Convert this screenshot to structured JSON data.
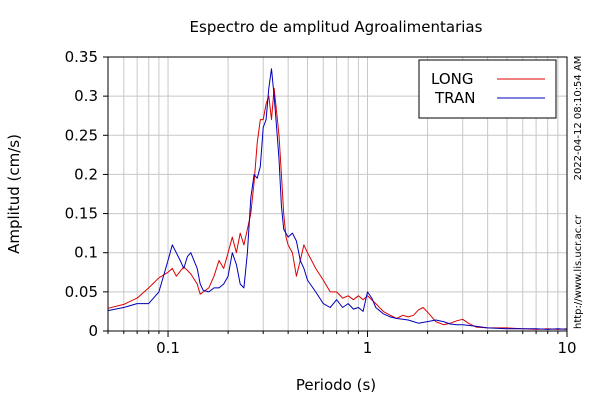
{
  "chart_data": {
    "type": "line",
    "title": "Espectro de amplitud Agroalimentarias",
    "xlabel": "Periodo (s)",
    "ylabel": "Amplitud (cm/s)",
    "xscale": "log",
    "xlim": [
      0.05,
      10
    ],
    "ylim": [
      0,
      0.35
    ],
    "xticks": [
      {
        "v": 0.1,
        "label": "0.1"
      },
      {
        "v": 1,
        "label": "1"
      },
      {
        "v": 10,
        "label": "10"
      }
    ],
    "yticks": [
      {
        "v": 0,
        "label": "0"
      },
      {
        "v": 0.05,
        "label": "0.05"
      },
      {
        "v": 0.1,
        "label": "0.1"
      },
      {
        "v": 0.15,
        "label": "0.15"
      },
      {
        "v": 0.2,
        "label": "0.2"
      },
      {
        "v": 0.25,
        "label": "0.25"
      },
      {
        "v": 0.3,
        "label": "0.3"
      },
      {
        "v": 0.35,
        "label": "0.35"
      }
    ],
    "grid": true,
    "legend_position": "top-right",
    "series": [
      {
        "name": "LONG",
        "color": "#dd0000",
        "points": [
          [
            0.05,
            0.029
          ],
          [
            0.06,
            0.034
          ],
          [
            0.07,
            0.042
          ],
          [
            0.08,
            0.055
          ],
          [
            0.09,
            0.068
          ],
          [
            0.1,
            0.075
          ],
          [
            0.105,
            0.08
          ],
          [
            0.11,
            0.07
          ],
          [
            0.12,
            0.082
          ],
          [
            0.13,
            0.073
          ],
          [
            0.14,
            0.06
          ],
          [
            0.145,
            0.047
          ],
          [
            0.15,
            0.05
          ],
          [
            0.16,
            0.055
          ],
          [
            0.17,
            0.07
          ],
          [
            0.18,
            0.09
          ],
          [
            0.19,
            0.08
          ],
          [
            0.2,
            0.1
          ],
          [
            0.21,
            0.12
          ],
          [
            0.22,
            0.1
          ],
          [
            0.23,
            0.125
          ],
          [
            0.24,
            0.11
          ],
          [
            0.25,
            0.13
          ],
          [
            0.26,
            0.15
          ],
          [
            0.27,
            0.19
          ],
          [
            0.28,
            0.24
          ],
          [
            0.29,
            0.27
          ],
          [
            0.3,
            0.27
          ],
          [
            0.31,
            0.29
          ],
          [
            0.32,
            0.3
          ],
          [
            0.33,
            0.27
          ],
          [
            0.34,
            0.31
          ],
          [
            0.35,
            0.28
          ],
          [
            0.36,
            0.25
          ],
          [
            0.37,
            0.2
          ],
          [
            0.38,
            0.15
          ],
          [
            0.39,
            0.12
          ],
          [
            0.4,
            0.11
          ],
          [
            0.42,
            0.1
          ],
          [
            0.44,
            0.07
          ],
          [
            0.46,
            0.09
          ],
          [
            0.48,
            0.11
          ],
          [
            0.5,
            0.1
          ],
          [
            0.55,
            0.08
          ],
          [
            0.6,
            0.065
          ],
          [
            0.65,
            0.05
          ],
          [
            0.7,
            0.05
          ],
          [
            0.75,
            0.042
          ],
          [
            0.8,
            0.045
          ],
          [
            0.85,
            0.04
          ],
          [
            0.9,
            0.045
          ],
          [
            0.95,
            0.04
          ],
          [
            1.0,
            0.045
          ],
          [
            1.1,
            0.035
          ],
          [
            1.2,
            0.025
          ],
          [
            1.3,
            0.02
          ],
          [
            1.4,
            0.016
          ],
          [
            1.5,
            0.02
          ],
          [
            1.6,
            0.018
          ],
          [
            1.7,
            0.02
          ],
          [
            1.8,
            0.027
          ],
          [
            1.9,
            0.03
          ],
          [
            2.0,
            0.024
          ],
          [
            2.2,
            0.012
          ],
          [
            2.4,
            0.008
          ],
          [
            2.6,
            0.01
          ],
          [
            2.8,
            0.013
          ],
          [
            3.0,
            0.015
          ],
          [
            3.2,
            0.01
          ],
          [
            3.5,
            0.005
          ],
          [
            4.0,
            0.004
          ],
          [
            5.0,
            0.004
          ],
          [
            6.0,
            0.003
          ],
          [
            7.0,
            0.002
          ],
          [
            8.0,
            0.003
          ],
          [
            9.0,
            0.002
          ],
          [
            10.0,
            0.003
          ]
        ]
      },
      {
        "name": "TRAN",
        "color": "#0000bb",
        "points": [
          [
            0.05,
            0.026
          ],
          [
            0.06,
            0.03
          ],
          [
            0.07,
            0.035
          ],
          [
            0.08,
            0.035
          ],
          [
            0.09,
            0.05
          ],
          [
            0.1,
            0.09
          ],
          [
            0.105,
            0.11
          ],
          [
            0.11,
            0.1
          ],
          [
            0.115,
            0.09
          ],
          [
            0.12,
            0.08
          ],
          [
            0.125,
            0.095
          ],
          [
            0.13,
            0.1
          ],
          [
            0.14,
            0.08
          ],
          [
            0.145,
            0.06
          ],
          [
            0.15,
            0.052
          ],
          [
            0.16,
            0.05
          ],
          [
            0.17,
            0.055
          ],
          [
            0.18,
            0.055
          ],
          [
            0.19,
            0.06
          ],
          [
            0.2,
            0.07
          ],
          [
            0.21,
            0.1
          ],
          [
            0.22,
            0.085
          ],
          [
            0.23,
            0.06
          ],
          [
            0.24,
            0.055
          ],
          [
            0.25,
            0.1
          ],
          [
            0.26,
            0.17
          ],
          [
            0.27,
            0.2
          ],
          [
            0.28,
            0.195
          ],
          [
            0.29,
            0.21
          ],
          [
            0.3,
            0.26
          ],
          [
            0.31,
            0.27
          ],
          [
            0.32,
            0.31
          ],
          [
            0.33,
            0.335
          ],
          [
            0.34,
            0.3
          ],
          [
            0.35,
            0.26
          ],
          [
            0.36,
            0.22
          ],
          [
            0.37,
            0.16
          ],
          [
            0.38,
            0.13
          ],
          [
            0.4,
            0.12
          ],
          [
            0.42,
            0.125
          ],
          [
            0.44,
            0.115
          ],
          [
            0.46,
            0.09
          ],
          [
            0.48,
            0.08
          ],
          [
            0.5,
            0.065
          ],
          [
            0.55,
            0.05
          ],
          [
            0.6,
            0.035
          ],
          [
            0.65,
            0.03
          ],
          [
            0.7,
            0.04
          ],
          [
            0.75,
            0.03
          ],
          [
            0.8,
            0.035
          ],
          [
            0.85,
            0.028
          ],
          [
            0.9,
            0.03
          ],
          [
            0.95,
            0.025
          ],
          [
            1.0,
            0.05
          ],
          [
            1.05,
            0.042
          ],
          [
            1.1,
            0.03
          ],
          [
            1.2,
            0.022
          ],
          [
            1.3,
            0.018
          ],
          [
            1.4,
            0.016
          ],
          [
            1.5,
            0.015
          ],
          [
            1.6,
            0.014
          ],
          [
            1.7,
            0.012
          ],
          [
            1.8,
            0.01
          ],
          [
            2.0,
            0.012
          ],
          [
            2.2,
            0.014
          ],
          [
            2.4,
            0.012
          ],
          [
            2.6,
            0.009
          ],
          [
            2.8,
            0.008
          ],
          [
            3.0,
            0.008
          ],
          [
            3.5,
            0.006
          ],
          [
            4.0,
            0.004
          ],
          [
            5.0,
            0.003
          ],
          [
            6.0,
            0.003
          ],
          [
            7.0,
            0.003
          ],
          [
            8.0,
            0.002
          ],
          [
            9.0,
            0.003
          ],
          [
            10.0,
            0.002
          ]
        ]
      }
    ]
  },
  "side_text": {
    "timestamp": "2022-04-12 08:10:54 AM",
    "url": "http://www.lis.ucr.ac.cr"
  }
}
